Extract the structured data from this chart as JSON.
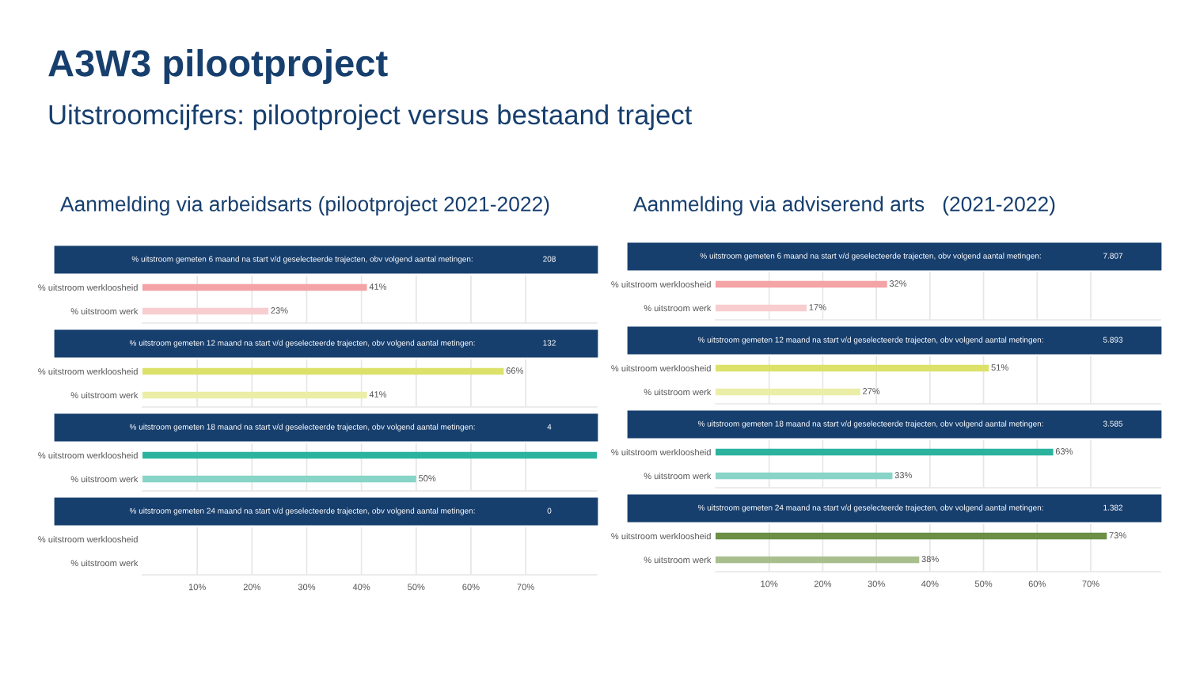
{
  "chart_data": [
    {
      "type": "bar",
      "orientation": "horizontal",
      "title": "% uitstroom gemeten 6 maand na start v/d geselecteerde trajecten, obv volgend aantal metingen:",
      "annotations": [
        "A3W3 pilootproject",
        "Uitstroomcijfers: pilootproject versus bestaand traject",
        "Aanmelding via arbeidsarts (pilootproject 2021-2022)",
        "208"
      ],
      "categories": [
        "% uitstroom werkloosheid",
        "% uitstroom werk"
      ],
      "values": [
        41,
        23
      ],
      "colors": [
        "#f4a3a6",
        "#f8cdd0"
      ],
      "value_labels": [
        "41%",
        "23%"
      ],
      "xlim": [
        0,
        83
      ],
      "xticks": [
        {
          "value": 10,
          "label": null
        },
        {
          "value": 20,
          "label": null
        },
        {
          "value": 30,
          "label": null
        },
        {
          "value": 40,
          "label": null
        },
        {
          "value": 50,
          "label": null
        },
        {
          "value": 60,
          "label": null
        },
        {
          "value": 70,
          "label": null
        }
      ],
      "grid": "x",
      "tick_labels": "y"
    },
    {
      "type": "bar",
      "orientation": "horizontal",
      "title": "% uitstroom gemeten 12 maand na start v/d geselecteerde trajecten, obv volgend aantal metingen:",
      "annotations": [
        "132"
      ],
      "categories": [
        "% uitstroom werkloosheid",
        "% uitstroom werk"
      ],
      "values": [
        66,
        41
      ],
      "colors": [
        "#dce16a",
        "#ebeea6"
      ],
      "value_labels": [
        "66%",
        "41%"
      ],
      "xlim": [
        0,
        83
      ],
      "xticks": [
        {
          "value": 10,
          "label": null
        },
        {
          "value": 20,
          "label": null
        },
        {
          "value": 30,
          "label": null
        },
        {
          "value": 40,
          "label": null
        },
        {
          "value": 50,
          "label": null
        },
        {
          "value": 60,
          "label": null
        },
        {
          "value": 70,
          "label": null
        }
      ],
      "grid": "x",
      "tick_labels": "y"
    },
    {
      "type": "bar",
      "orientation": "horizontal",
      "title": "% uitstroom gemeten 18 maand na start v/d geselecteerde trajecten, obv volgend aantal metingen:",
      "annotations": [
        "4"
      ],
      "categories": [
        "% uitstroom werkloosheid",
        "% uitstroom werk"
      ],
      "values": [
        83,
        50
      ],
      "colors": [
        "#2bb39e",
        "#88d4c7"
      ],
      "value_labels": [
        null,
        "50%"
      ],
      "xlim": [
        0,
        83
      ],
      "xticks": [
        {
          "value": 10,
          "label": null
        },
        {
          "value": 20,
          "label": null
        },
        {
          "value": 30,
          "label": null
        },
        {
          "value": 40,
          "label": null
        },
        {
          "value": 50,
          "label": null
        },
        {
          "value": 60,
          "label": null
        },
        {
          "value": 70,
          "label": null
        }
      ],
      "grid": "x",
      "tick_labels": "y"
    },
    {
      "type": "bar",
      "orientation": "horizontal",
      "title": "% uitstroom gemeten 24 maand na start v/d geselecteerde trajecten, obv volgend aantal metingen:",
      "annotations": [
        "0"
      ],
      "categories": [
        "% uitstroom werkloosheid",
        "% uitstroom werk"
      ],
      "values": [
        null,
        null
      ],
      "xlim": [
        0,
        83
      ],
      "xticks": [
        {
          "value": 10,
          "label": "10%"
        },
        {
          "value": 20,
          "label": "20%"
        },
        {
          "value": 30,
          "label": "30%"
        },
        {
          "value": 40,
          "label": "40%"
        },
        {
          "value": 50,
          "label": "50%"
        },
        {
          "value": 60,
          "label": "60%"
        },
        {
          "value": 70,
          "label": "70%"
        }
      ],
      "grid": "x"
    },
    {
      "type": "bar",
      "orientation": "horizontal",
      "title": "% uitstroom gemeten 6 maand na start v/d geselecteerde trajecten, obv volgend aantal metingen:",
      "annotations": [
        "Aanmelding via adviserend arts   (2021-2022)",
        "7.807"
      ],
      "categories": [
        "% uitstroom werkloosheid",
        "% uitstroom werk"
      ],
      "values": [
        32,
        17
      ],
      "colors": [
        "#f4a3a6",
        "#f8cdd0"
      ],
      "value_labels": [
        "32%",
        "17%"
      ],
      "xlim": [
        0,
        83
      ],
      "xticks": [
        {
          "value": 10,
          "label": null
        },
        {
          "value": 20,
          "label": null
        },
        {
          "value": 30,
          "label": null
        },
        {
          "value": 40,
          "label": null
        },
        {
          "value": 50,
          "label": null
        },
        {
          "value": 60,
          "label": null
        },
        {
          "value": 70,
          "label": null
        }
      ],
      "grid": "x",
      "tick_labels": "y"
    },
    {
      "type": "bar",
      "orientation": "horizontal",
      "title": "% uitstroom gemeten 12 maand na start v/d geselecteerde trajecten, obv volgend aantal metingen:",
      "annotations": [
        "5.893"
      ],
      "categories": [
        "% uitstroom werkloosheid",
        "% uitstroom werk"
      ],
      "values": [
        51,
        27
      ],
      "colors": [
        "#dce16a",
        "#ebeea6"
      ],
      "value_labels": [
        "51%",
        "27%"
      ],
      "xlim": [
        0,
        83
      ],
      "xticks": [
        {
          "value": 10,
          "label": null
        },
        {
          "value": 20,
          "label": null
        },
        {
          "value": 30,
          "label": null
        },
        {
          "value": 40,
          "label": null
        },
        {
          "value": 50,
          "label": null
        },
        {
          "value": 60,
          "label": null
        },
        {
          "value": 70,
          "label": null
        }
      ],
      "grid": "x",
      "tick_labels": "y"
    },
    {
      "type": "bar",
      "orientation": "horizontal",
      "title": "% uitstroom gemeten 18 maand na start v/d geselecteerde trajecten, obv volgend aantal metingen:",
      "annotations": [
        "3.585"
      ],
      "categories": [
        "% uitstroom werkloosheid",
        "% uitstroom werk"
      ],
      "values": [
        63,
        33
      ],
      "colors": [
        "#2bb39e",
        "#88d4c7"
      ],
      "value_labels": [
        "63%",
        "33%"
      ],
      "xlim": [
        0,
        83
      ],
      "xticks": [
        {
          "value": 10,
          "label": null
        },
        {
          "value": 20,
          "label": null
        },
        {
          "value": 30,
          "label": null
        },
        {
          "value": 40,
          "label": null
        },
        {
          "value": 50,
          "label": null
        },
        {
          "value": 60,
          "label": null
        },
        {
          "value": 70,
          "label": null
        }
      ],
      "grid": "x",
      "tick_labels": "y"
    },
    {
      "type": "bar",
      "orientation": "horizontal",
      "title": "% uitstroom gemeten 24 maand na start v/d geselecteerde trajecten, obv volgend aantal metingen:",
      "annotations": [
        "1.382"
      ],
      "categories": [
        "% uitstroom werkloosheid",
        "% uitstroom werk"
      ],
      "values": [
        73,
        38
      ],
      "colors": [
        "#6a8f45",
        "#a8bf8d"
      ],
      "value_labels": [
        "73%",
        "38%"
      ],
      "xlim": [
        0,
        83
      ],
      "xticks": [
        {
          "value": 10,
          "label": "10%"
        },
        {
          "value": 20,
          "label": "20%"
        },
        {
          "value": 30,
          "label": "30%"
        },
        {
          "value": 40,
          "label": "40%"
        },
        {
          "value": 50,
          "label": "50%"
        },
        {
          "value": 60,
          "label": "60%"
        },
        {
          "value": 70,
          "label": "70%"
        }
      ],
      "grid": "x"
    }
  ]
}
